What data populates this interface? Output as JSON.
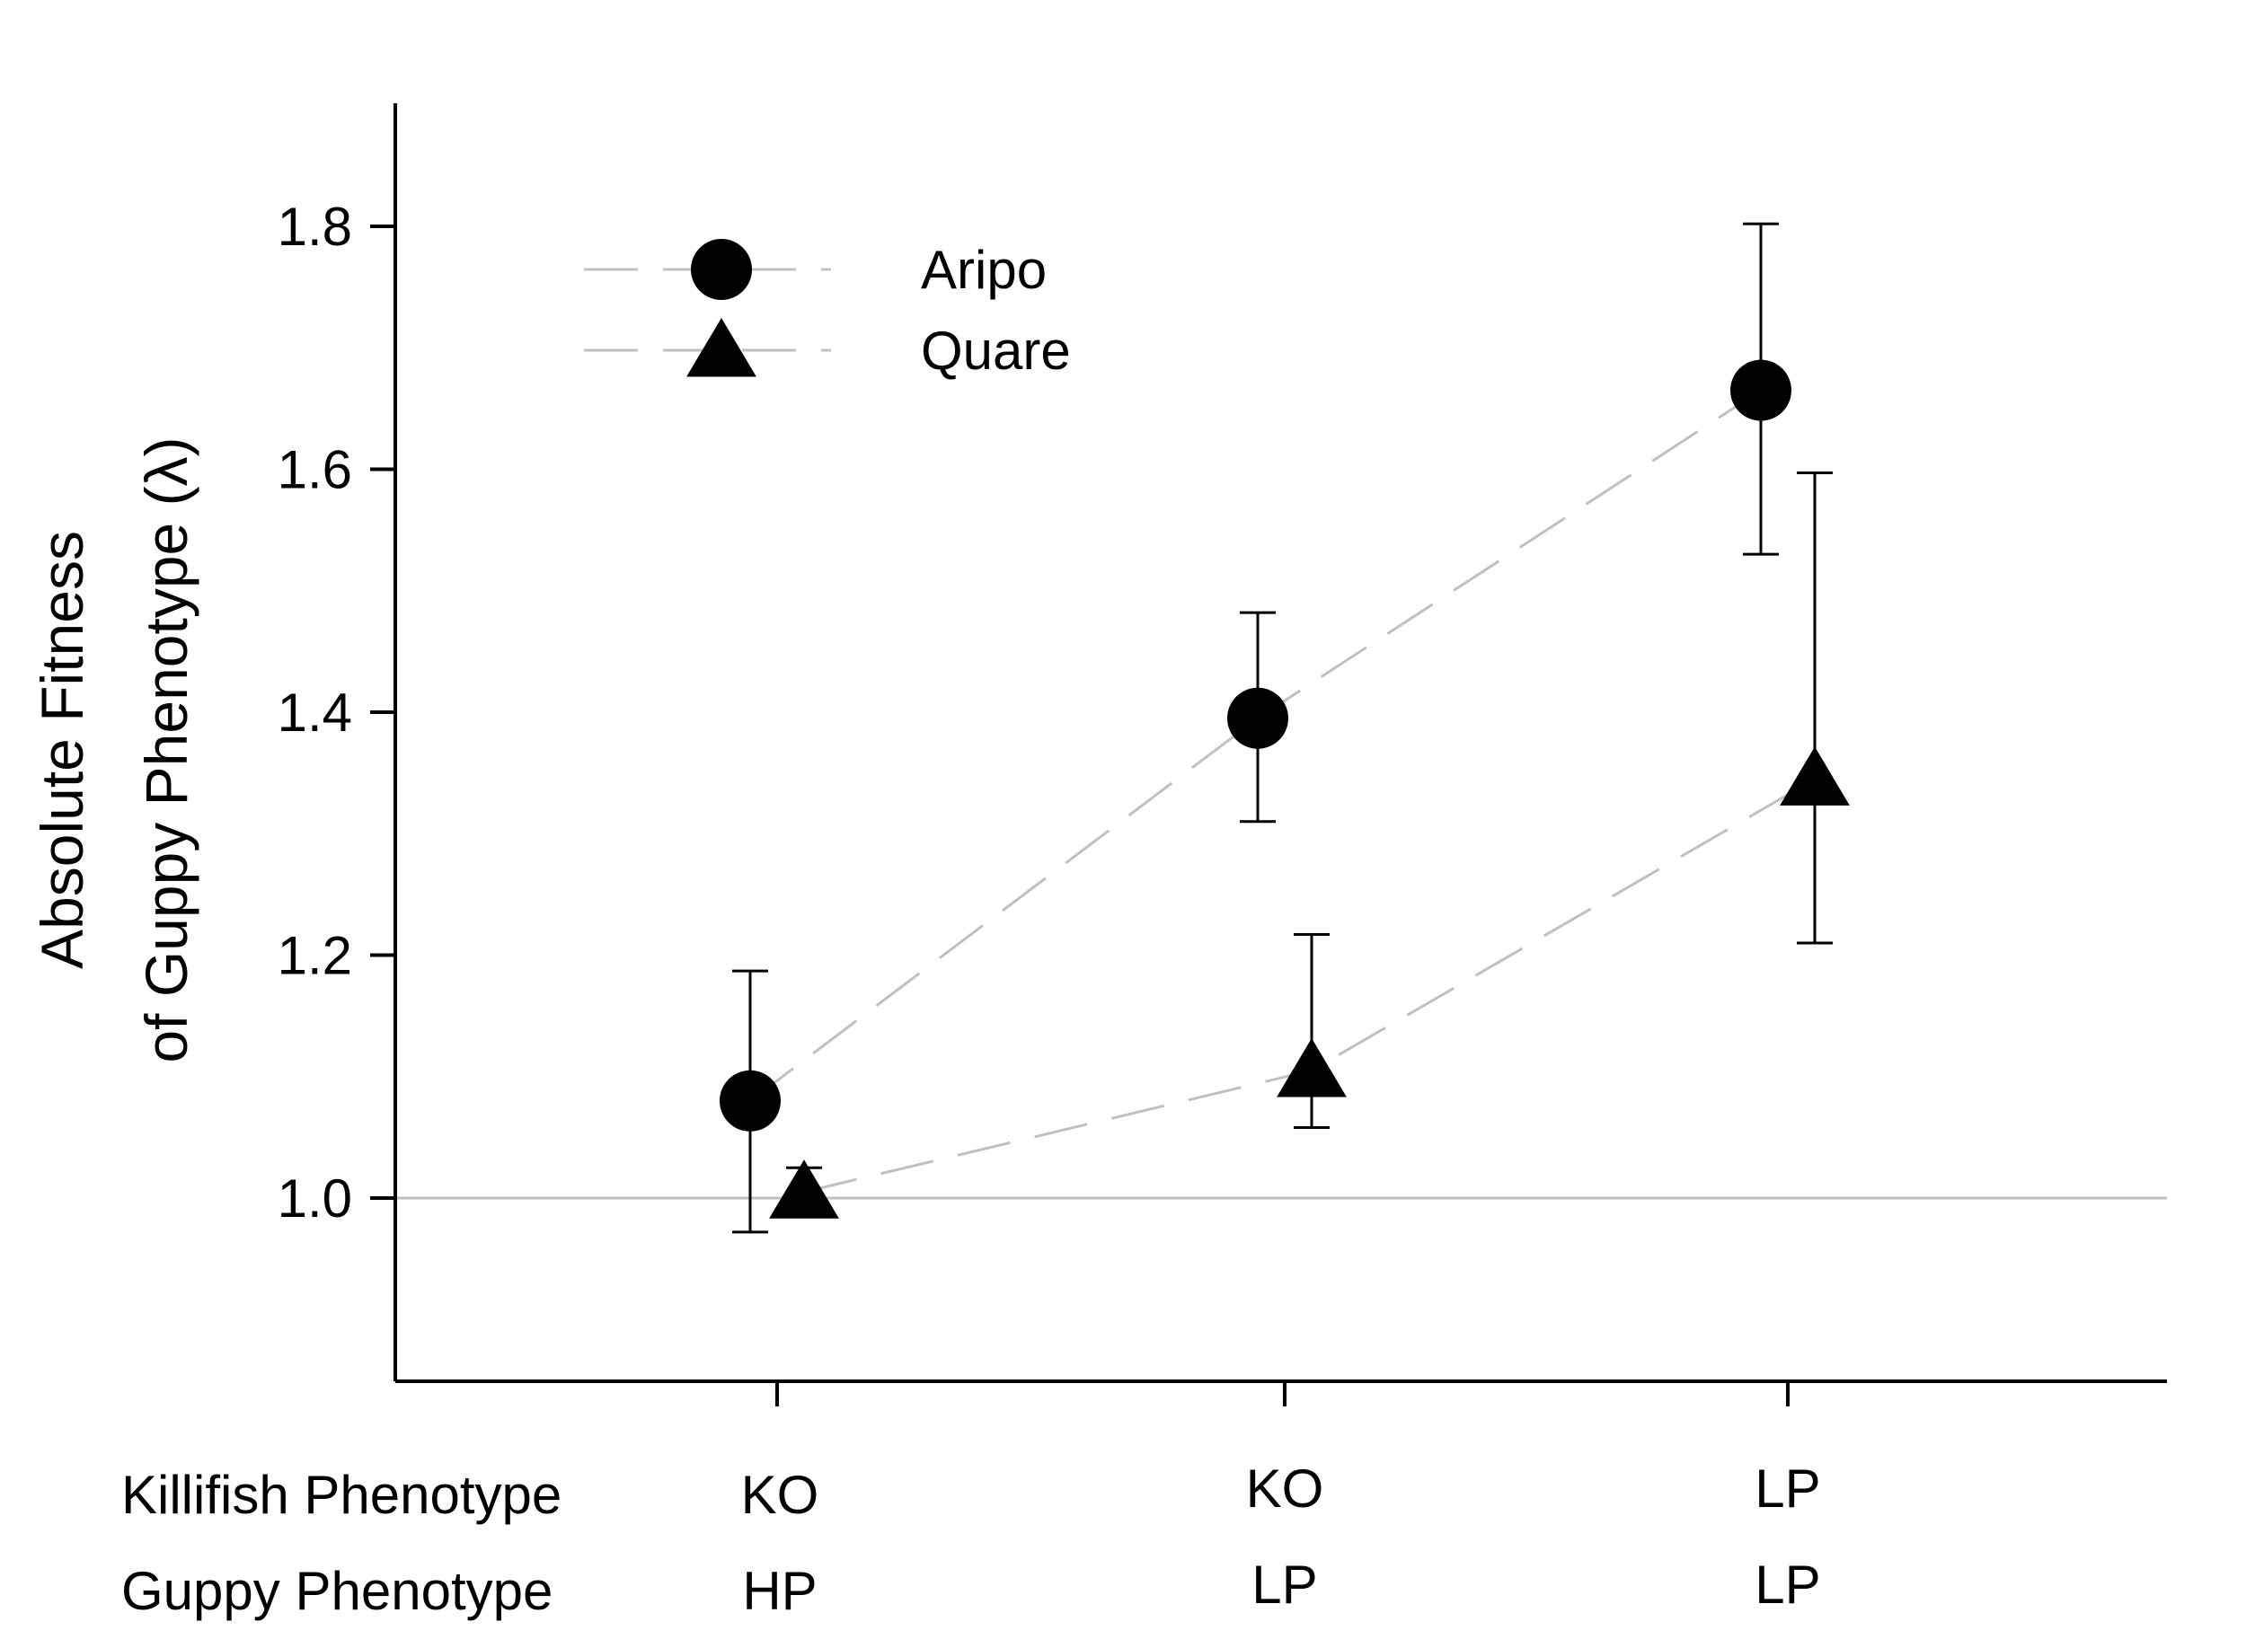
{
  "chart_data": {
    "type": "scatter",
    "title": "",
    "ylabel_lines": [
      "Absolute Fitness",
      "of Guppy Phenotype (λ)"
    ],
    "xlabel": "",
    "ylim": [
      0.85,
      1.9
    ],
    "yticks": [
      1.0,
      1.2,
      1.4,
      1.6,
      1.8
    ],
    "ytick_labels": [
      "1.0",
      "1.2",
      "1.4",
      "1.6",
      "1.8"
    ],
    "reference_line": 1.0,
    "grid": false,
    "legend_position": "top-left",
    "category_rows": [
      {
        "label": "Killifish Phenotype",
        "values": [
          "KO",
          "KO",
          "LP"
        ]
      },
      {
        "label": "Guppy Phenotype",
        "values": [
          "HP",
          "LP",
          "LP"
        ]
      }
    ],
    "series": [
      {
        "name": "Aripo",
        "marker": "circle",
        "values": [
          1.08,
          1.395,
          1.665
        ],
        "err_low": [
          0.972,
          1.31,
          1.53
        ],
        "err_high": [
          1.187,
          1.482,
          1.802
        ]
      },
      {
        "name": "Quare",
        "marker": "triangle",
        "values": [
          1.005,
          1.105,
          1.345
        ],
        "err_low": [
          1.005,
          1.058,
          1.21
        ],
        "err_high": [
          1.025,
          1.217,
          1.597
        ]
      }
    ],
    "colors": {
      "marker": "#000000",
      "connector": "#c0c0c0",
      "axis": "#000000",
      "reference": "#c0c0c0"
    }
  }
}
